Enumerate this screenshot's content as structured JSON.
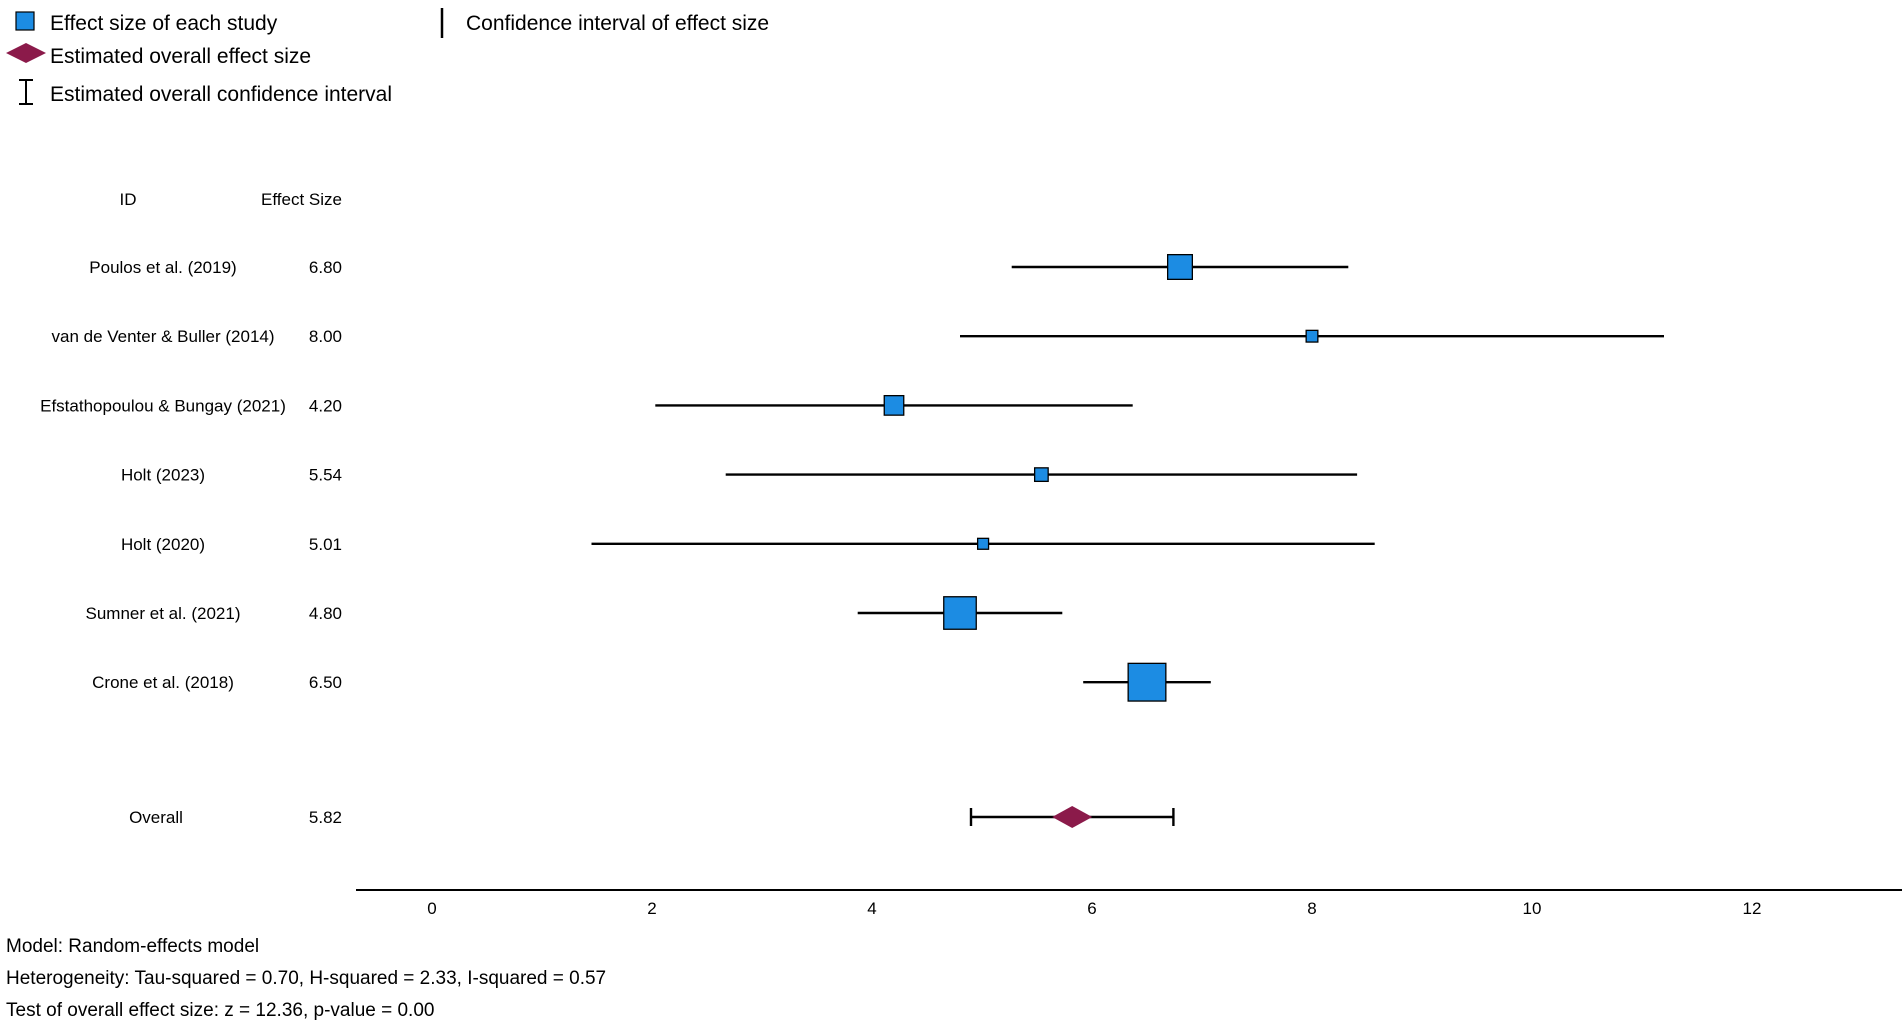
{
  "legend": {
    "study_effect": "Effect size of each study",
    "study_ci": "Confidence interval of effect size",
    "overall_effect": "Estimated overall effect size",
    "overall_ci": "Estimated overall confidence interval"
  },
  "table_headers": {
    "id": "ID",
    "effect": "Effect Size"
  },
  "colors": {
    "study_marker": "#1c8ce3",
    "overall_marker": "#8b1a4a",
    "line": "#000000"
  },
  "footer": {
    "model": "Model: Random-effects model",
    "heterogeneity": "Heterogeneity: Tau-squared = 0.70, H-squared = 2.33, I-squared = 0.57",
    "test": "Test of overall effect size: z = 12.36, p-value = 0.00"
  },
  "chart_data": {
    "type": "forest",
    "xlim": [
      -0.7,
      13.4
    ],
    "x_ticks": [
      0,
      2,
      4,
      6,
      8,
      10,
      12
    ],
    "x_tick_labels": [
      "0",
      "2",
      "4",
      "6",
      "8",
      "10",
      "12"
    ],
    "studies": [
      {
        "id": "Poulos et al. (2019)",
        "effect_label": "6.80",
        "effect": 6.8,
        "ci": [
          5.27,
          8.33
        ],
        "weight": 0.95
      },
      {
        "id": "van de Venter & Buller (2014)",
        "effect_label": "8.00",
        "effect": 8.0,
        "ci": [
          4.8,
          11.2
        ],
        "weight": 0.45
      },
      {
        "id": "Efstathopoulou & Bungay (2021)",
        "effect_label": "4.20",
        "effect": 4.2,
        "ci": [
          2.03,
          6.37
        ],
        "weight": 0.75
      },
      {
        "id": "Holt (2023)",
        "effect_label": "5.54",
        "effect": 5.54,
        "ci": [
          2.67,
          8.41
        ],
        "weight": 0.52
      },
      {
        "id": "Holt (2020)",
        "effect_label": "5.01",
        "effect": 5.01,
        "ci": [
          1.45,
          8.57
        ],
        "weight": 0.42
      },
      {
        "id": "Sumner et al. (2021)",
        "effect_label": "4.80",
        "effect": 4.8,
        "ci": [
          3.87,
          5.73
        ],
        "weight": 1.25
      },
      {
        "id": "Crone et al. (2018)",
        "effect_label": "6.50",
        "effect": 6.5,
        "ci": [
          5.92,
          7.08
        ],
        "weight": 1.45
      }
    ],
    "overall": {
      "id": "Overall",
      "effect_label": "5.82",
      "effect": 5.82,
      "ci": [
        4.9,
        6.74
      ]
    }
  }
}
